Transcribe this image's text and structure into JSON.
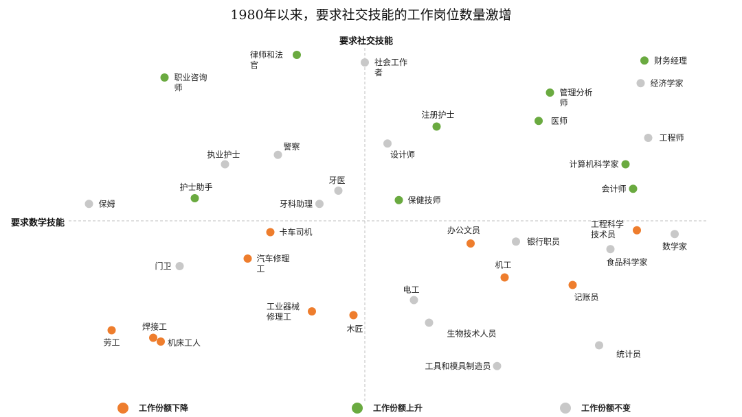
{
  "chart_data": {
    "type": "scatter",
    "title": "1980年以来，要求社交技能的工作岗位数量激增",
    "ylabel": "要求社交技能",
    "xlabel": "要求数学技能",
    "xlim": [
      -1,
      1
    ],
    "ylim": [
      -1,
      1
    ],
    "grid": false,
    "legend_position": "bottom",
    "colors": {
      "down": "#ee7d2d",
      "up": "#6aaa40",
      "same": "#c8c8c8",
      "axis": "#bfbfbf"
    },
    "legend": [
      {
        "key": "down",
        "label": "工作份额下降"
      },
      {
        "key": "up",
        "label": "工作份额上升"
      },
      {
        "key": "same",
        "label": "工作份额不变"
      }
    ],
    "series": [
      {
        "key": "down",
        "points": [
          {
            "label": "卡车司机",
            "x": -0.25,
            "y": -0.06
          },
          {
            "label": "汽车修理工",
            "x": -0.31,
            "y": -0.2
          },
          {
            "label": "工业器械修理工",
            "x": -0.14,
            "y": -0.48
          },
          {
            "label": "木匠",
            "x": -0.03,
            "y": -0.5
          },
          {
            "label": "劳工",
            "x": -0.67,
            "y": -0.58
          },
          {
            "label": "焊接工",
            "x": -0.56,
            "y": -0.62
          },
          {
            "label": "机床工人",
            "x": -0.54,
            "y": -0.64
          },
          {
            "label": "办公文员",
            "x": 0.28,
            "y": -0.12
          },
          {
            "label": "机工",
            "x": 0.37,
            "y": -0.3
          },
          {
            "label": "记账员",
            "x": 0.55,
            "y": -0.34
          },
          {
            "label": "工程科学技术员",
            "x": 0.72,
            "y": -0.05
          }
        ]
      },
      {
        "key": "up",
        "points": [
          {
            "label": "律师和法官",
            "x": -0.18,
            "y": 0.88
          },
          {
            "label": "职业咨询师",
            "x": -0.53,
            "y": 0.76
          },
          {
            "label": "护士助手",
            "x": -0.45,
            "y": 0.12
          },
          {
            "label": "注册护士",
            "x": 0.19,
            "y": 0.5
          },
          {
            "label": "保健技师",
            "x": 0.09,
            "y": 0.11
          },
          {
            "label": "管理分析师",
            "x": 0.49,
            "y": 0.68
          },
          {
            "label": "医师",
            "x": 0.46,
            "y": 0.53
          },
          {
            "label": "财务经理",
            "x": 0.74,
            "y": 0.85
          },
          {
            "label": "计算机科学家",
            "x": 0.69,
            "y": 0.3
          },
          {
            "label": "会计师",
            "x": 0.71,
            "y": 0.17
          }
        ]
      },
      {
        "key": "same",
        "points": [
          {
            "label": "社会工作者",
            "x": 0.0,
            "y": 0.84
          },
          {
            "label": "警察",
            "x": -0.23,
            "y": 0.35
          },
          {
            "label": "执业护士",
            "x": -0.37,
            "y": 0.3
          },
          {
            "label": "牙医",
            "x": -0.07,
            "y": 0.16
          },
          {
            "label": "牙科助理",
            "x": -0.12,
            "y": 0.09
          },
          {
            "label": "保姆",
            "x": -0.73,
            "y": 0.09
          },
          {
            "label": "设计师",
            "x": 0.06,
            "y": 0.41
          },
          {
            "label": "经济学家",
            "x": 0.73,
            "y": 0.73
          },
          {
            "label": "工程师",
            "x": 0.75,
            "y": 0.44
          },
          {
            "label": "银行职员",
            "x": 0.4,
            "y": -0.11
          },
          {
            "label": "数学家",
            "x": 0.82,
            "y": -0.07
          },
          {
            "label": "食品科学家",
            "x": 0.65,
            "y": -0.15
          },
          {
            "label": "门卫",
            "x": -0.49,
            "y": -0.24
          },
          {
            "label": "电工",
            "x": 0.13,
            "y": -0.42
          },
          {
            "label": "生物技术人员",
            "x": 0.17,
            "y": -0.54
          },
          {
            "label": "统计员",
            "x": 0.62,
            "y": -0.66
          },
          {
            "label": "工具和模具制造员",
            "x": 0.35,
            "y": -0.77
          }
        ]
      }
    ]
  }
}
